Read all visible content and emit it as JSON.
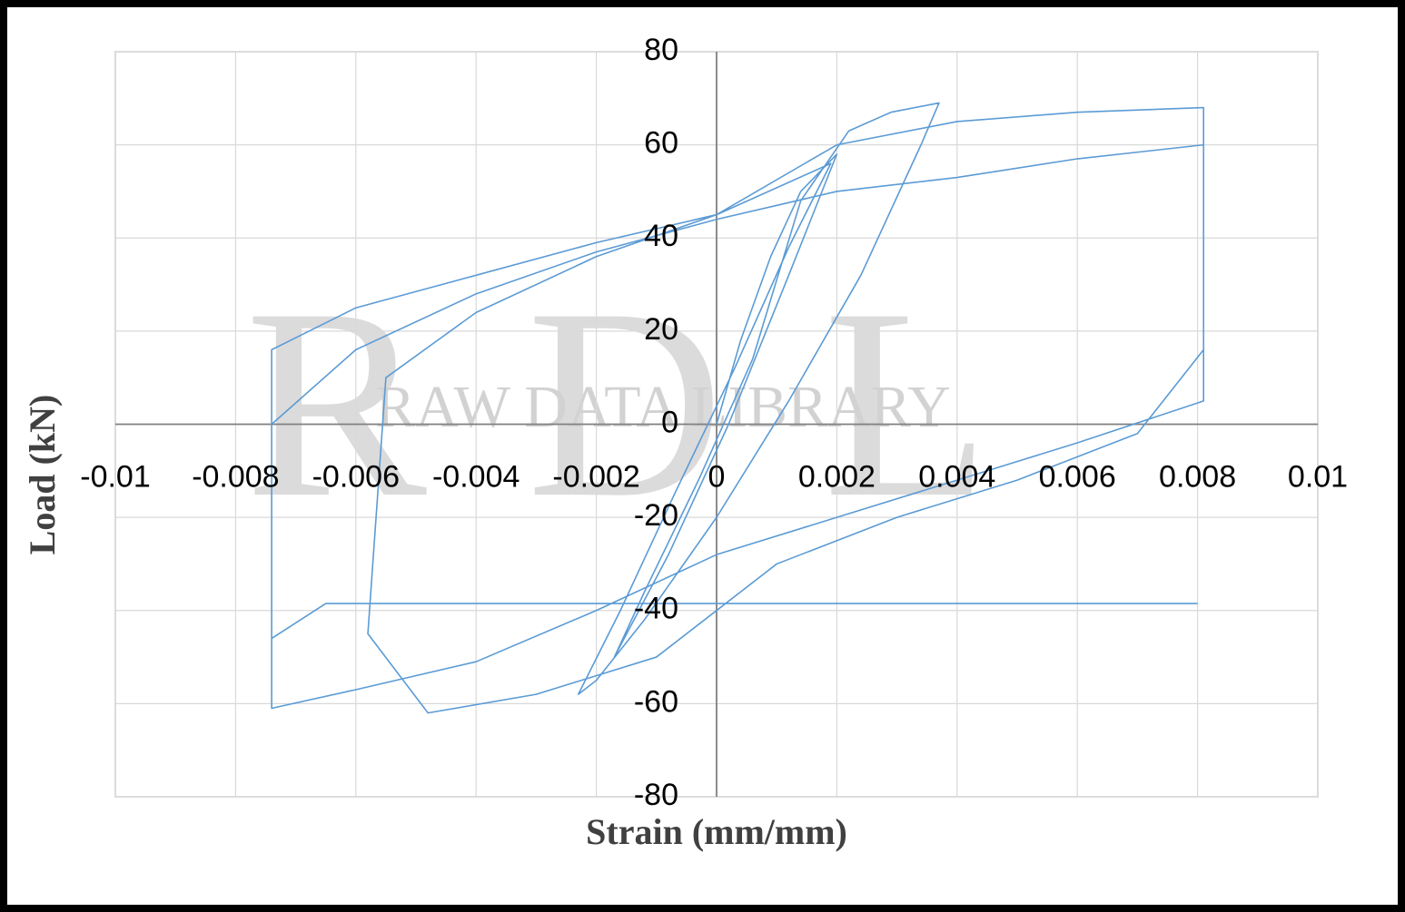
{
  "chart_data": {
    "type": "line",
    "xlabel": "Strain (mm/mm)",
    "ylabel": "Load (kN)",
    "watermark": "RDL",
    "watermark_subtitle": "RAW DATA LIBRARY",
    "color": "#5b9bd5",
    "xlim": [
      -0.01,
      0.01
    ],
    "ylim": [
      -80,
      80
    ],
    "xticks": [
      -0.01,
      -0.008,
      -0.006,
      -0.004,
      -0.002,
      0,
      0.002,
      0.004,
      0.006,
      0.008,
      0.01
    ],
    "yticks": [
      -80,
      -60,
      -40,
      -20,
      0,
      20,
      40,
      60,
      80
    ],
    "grid": true,
    "x": [
      0,
      0.0004,
      0.0009,
      0.0014,
      0.002,
      0.0012,
      0.0002,
      -0.0008,
      -0.0017,
      -0.0012,
      -0.0003,
      0.0006,
      0.0014,
      0.0022,
      0.0029,
      0.0037,
      0.0034,
      0.0024,
      0.0012,
      0.0,
      -0.0012,
      -0.002,
      -0.0023,
      -0.0016,
      -0.0007,
      0.0003,
      0.0012,
      0.0019,
      0.0,
      -0.002,
      -0.004,
      -0.006,
      -0.0074,
      -0.0074,
      -0.006,
      -0.004,
      -0.002,
      0.0,
      0.002,
      0.004,
      0.006,
      0.0081,
      0.0081,
      0.006,
      0.004,
      0.002,
      0.0,
      -0.002,
      -0.004,
      -0.0055,
      -0.0058,
      -0.0048,
      -0.003,
      -0.001,
      0.001,
      0.003,
      0.005,
      0.007,
      0.0081,
      0.0081,
      0.006,
      0.004,
      0.002,
      0.0,
      -0.002,
      -0.004,
      -0.006,
      -0.0074,
      -0.0074,
      -0.0065,
      -0.004,
      -0.002,
      0.0,
      0.002,
      0.004,
      0.006,
      0.008
    ],
    "values": [
      0,
      18,
      36,
      50,
      58,
      32,
      0,
      -28,
      -50,
      -36,
      -12,
      14,
      48,
      63,
      67,
      69,
      60,
      32,
      5,
      -20,
      -42,
      -55,
      -58,
      -40,
      -15,
      12,
      38,
      56,
      45,
      39,
      32,
      25,
      16,
      -61,
      -57,
      -51,
      -40,
      -28,
      -20,
      -12,
      -4,
      5,
      68,
      67,
      65,
      60,
      45,
      36,
      24,
      10,
      -45,
      -62,
      -58,
      -50,
      -30,
      -20,
      -12,
      -2,
      16,
      60,
      57,
      53,
      50,
      44,
      37,
      28,
      16,
      0,
      -46,
      -38.5,
      -38.5,
      -38.5,
      -38.5,
      -38.5,
      -38.5,
      -38.5,
      -38.5
    ]
  }
}
